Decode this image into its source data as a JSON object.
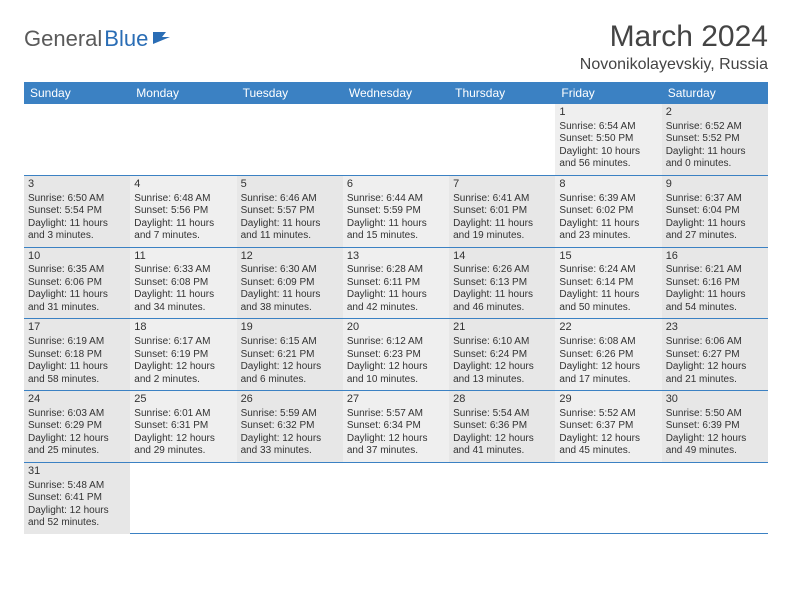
{
  "logo": {
    "text1": "General",
    "text2": "Blue"
  },
  "title": "March 2024",
  "location": "Novonikolayevskiy, Russia",
  "colors": {
    "headerBg": "#3b81c3",
    "rowBg": "#e7e7e7",
    "border": "#3b81c3"
  },
  "dayHeaders": [
    "Sunday",
    "Monday",
    "Tuesday",
    "Wednesday",
    "Thursday",
    "Friday",
    "Saturday"
  ],
  "weeks": [
    [
      null,
      null,
      null,
      null,
      null,
      {
        "n": "1",
        "sr": "Sunrise: 6:54 AM",
        "ss": "Sunset: 5:50 PM",
        "dl": "Daylight: 10 hours and 56 minutes."
      },
      {
        "n": "2",
        "sr": "Sunrise: 6:52 AM",
        "ss": "Sunset: 5:52 PM",
        "dl": "Daylight: 11 hours and 0 minutes."
      }
    ],
    [
      {
        "n": "3",
        "sr": "Sunrise: 6:50 AM",
        "ss": "Sunset: 5:54 PM",
        "dl": "Daylight: 11 hours and 3 minutes."
      },
      {
        "n": "4",
        "sr": "Sunrise: 6:48 AM",
        "ss": "Sunset: 5:56 PM",
        "dl": "Daylight: 11 hours and 7 minutes."
      },
      {
        "n": "5",
        "sr": "Sunrise: 6:46 AM",
        "ss": "Sunset: 5:57 PM",
        "dl": "Daylight: 11 hours and 11 minutes."
      },
      {
        "n": "6",
        "sr": "Sunrise: 6:44 AM",
        "ss": "Sunset: 5:59 PM",
        "dl": "Daylight: 11 hours and 15 minutes."
      },
      {
        "n": "7",
        "sr": "Sunrise: 6:41 AM",
        "ss": "Sunset: 6:01 PM",
        "dl": "Daylight: 11 hours and 19 minutes."
      },
      {
        "n": "8",
        "sr": "Sunrise: 6:39 AM",
        "ss": "Sunset: 6:02 PM",
        "dl": "Daylight: 11 hours and 23 minutes."
      },
      {
        "n": "9",
        "sr": "Sunrise: 6:37 AM",
        "ss": "Sunset: 6:04 PM",
        "dl": "Daylight: 11 hours and 27 minutes."
      }
    ],
    [
      {
        "n": "10",
        "sr": "Sunrise: 6:35 AM",
        "ss": "Sunset: 6:06 PM",
        "dl": "Daylight: 11 hours and 31 minutes."
      },
      {
        "n": "11",
        "sr": "Sunrise: 6:33 AM",
        "ss": "Sunset: 6:08 PM",
        "dl": "Daylight: 11 hours and 34 minutes."
      },
      {
        "n": "12",
        "sr": "Sunrise: 6:30 AM",
        "ss": "Sunset: 6:09 PM",
        "dl": "Daylight: 11 hours and 38 minutes."
      },
      {
        "n": "13",
        "sr": "Sunrise: 6:28 AM",
        "ss": "Sunset: 6:11 PM",
        "dl": "Daylight: 11 hours and 42 minutes."
      },
      {
        "n": "14",
        "sr": "Sunrise: 6:26 AM",
        "ss": "Sunset: 6:13 PM",
        "dl": "Daylight: 11 hours and 46 minutes."
      },
      {
        "n": "15",
        "sr": "Sunrise: 6:24 AM",
        "ss": "Sunset: 6:14 PM",
        "dl": "Daylight: 11 hours and 50 minutes."
      },
      {
        "n": "16",
        "sr": "Sunrise: 6:21 AM",
        "ss": "Sunset: 6:16 PM",
        "dl": "Daylight: 11 hours and 54 minutes."
      }
    ],
    [
      {
        "n": "17",
        "sr": "Sunrise: 6:19 AM",
        "ss": "Sunset: 6:18 PM",
        "dl": "Daylight: 11 hours and 58 minutes."
      },
      {
        "n": "18",
        "sr": "Sunrise: 6:17 AM",
        "ss": "Sunset: 6:19 PM",
        "dl": "Daylight: 12 hours and 2 minutes."
      },
      {
        "n": "19",
        "sr": "Sunrise: 6:15 AM",
        "ss": "Sunset: 6:21 PM",
        "dl": "Daylight: 12 hours and 6 minutes."
      },
      {
        "n": "20",
        "sr": "Sunrise: 6:12 AM",
        "ss": "Sunset: 6:23 PM",
        "dl": "Daylight: 12 hours and 10 minutes."
      },
      {
        "n": "21",
        "sr": "Sunrise: 6:10 AM",
        "ss": "Sunset: 6:24 PM",
        "dl": "Daylight: 12 hours and 13 minutes."
      },
      {
        "n": "22",
        "sr": "Sunrise: 6:08 AM",
        "ss": "Sunset: 6:26 PM",
        "dl": "Daylight: 12 hours and 17 minutes."
      },
      {
        "n": "23",
        "sr": "Sunrise: 6:06 AM",
        "ss": "Sunset: 6:27 PM",
        "dl": "Daylight: 12 hours and 21 minutes."
      }
    ],
    [
      {
        "n": "24",
        "sr": "Sunrise: 6:03 AM",
        "ss": "Sunset: 6:29 PM",
        "dl": "Daylight: 12 hours and 25 minutes."
      },
      {
        "n": "25",
        "sr": "Sunrise: 6:01 AM",
        "ss": "Sunset: 6:31 PM",
        "dl": "Daylight: 12 hours and 29 minutes."
      },
      {
        "n": "26",
        "sr": "Sunrise: 5:59 AM",
        "ss": "Sunset: 6:32 PM",
        "dl": "Daylight: 12 hours and 33 minutes."
      },
      {
        "n": "27",
        "sr": "Sunrise: 5:57 AM",
        "ss": "Sunset: 6:34 PM",
        "dl": "Daylight: 12 hours and 37 minutes."
      },
      {
        "n": "28",
        "sr": "Sunrise: 5:54 AM",
        "ss": "Sunset: 6:36 PM",
        "dl": "Daylight: 12 hours and 41 minutes."
      },
      {
        "n": "29",
        "sr": "Sunrise: 5:52 AM",
        "ss": "Sunset: 6:37 PM",
        "dl": "Daylight: 12 hours and 45 minutes."
      },
      {
        "n": "30",
        "sr": "Sunrise: 5:50 AM",
        "ss": "Sunset: 6:39 PM",
        "dl": "Daylight: 12 hours and 49 minutes."
      }
    ],
    [
      {
        "n": "31",
        "sr": "Sunrise: 5:48 AM",
        "ss": "Sunset: 6:41 PM",
        "dl": "Daylight: 12 hours and 52 minutes."
      },
      null,
      null,
      null,
      null,
      null,
      null
    ]
  ]
}
